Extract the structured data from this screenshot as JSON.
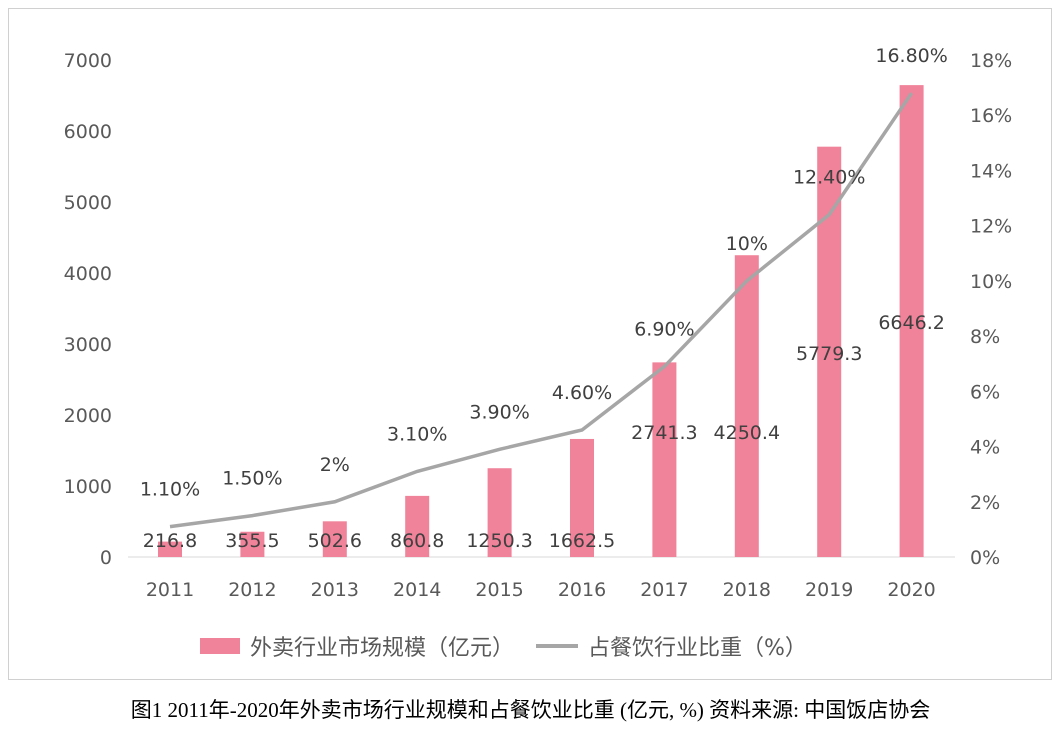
{
  "chart_data": {
    "type": "bar+line",
    "categories": [
      "2011",
      "2012",
      "2013",
      "2014",
      "2015",
      "2016",
      "2017",
      "2018",
      "2019",
      "2020"
    ],
    "series": [
      {
        "name": "外卖行业市场规模（亿元）",
        "type": "bar",
        "axis": "left",
        "values": [
          216.8,
          355.5,
          502.6,
          860.8,
          1250.3,
          1662.5,
          2741.3,
          4250.4,
          5779.3,
          6646.2
        ],
        "labels": [
          "216.8",
          "355.5",
          "502.6",
          "860.8",
          "1250.3",
          "1662.5",
          "2741.3",
          "4250.4",
          "5779.3",
          "6646.2"
        ],
        "color": "#f0829a"
      },
      {
        "name": "占餐饮行业比重（%）",
        "type": "line",
        "axis": "right",
        "values": [
          1.1,
          1.5,
          2,
          3.1,
          3.9,
          4.6,
          6.9,
          10,
          12.4,
          16.8
        ],
        "labels": [
          "1.10%",
          "1.50%",
          "2%",
          "3.10%",
          "3.90%",
          "4.60%",
          "6.90%",
          "10%",
          "12.40%",
          "16.80%"
        ],
        "color": "#a6a6a6"
      }
    ],
    "y_left": {
      "range": [
        0,
        7000
      ],
      "ticks": [
        "0",
        "1000",
        "2000",
        "3000",
        "4000",
        "5000",
        "6000",
        "7000"
      ]
    },
    "y_right": {
      "range": [
        0,
        18
      ],
      "ticks": [
        "0%",
        "2%",
        "4%",
        "6%",
        "8%",
        "10%",
        "12%",
        "14%",
        "16%",
        "18%"
      ]
    },
    "legend": "bottom",
    "grid": false
  },
  "legend": {
    "bar": "外卖行业市场规模（亿元）",
    "line": "占餐饮行业比重（%）"
  },
  "caption": "图1 2011年-2020年外卖市场行业规模和占餐饮业比重 (亿元, %) 资料来源: 中国饭店协会"
}
